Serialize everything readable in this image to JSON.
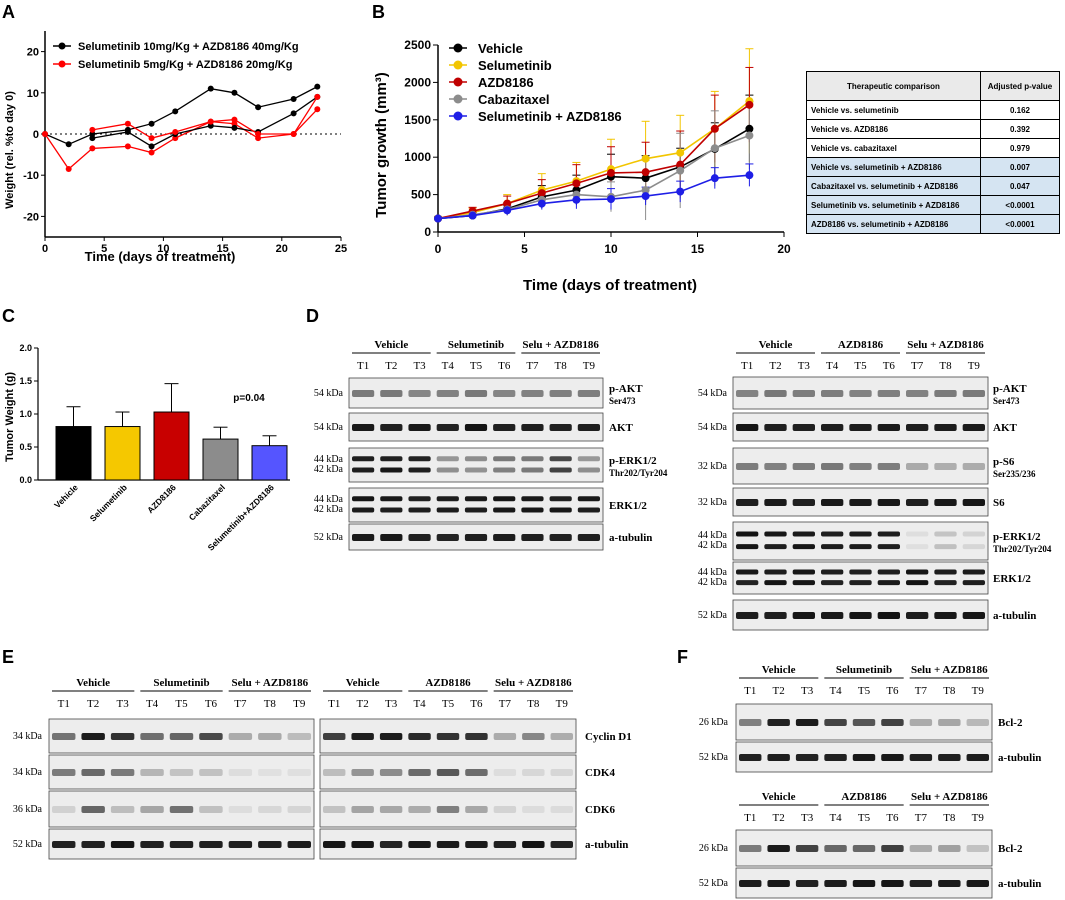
{
  "panels": {
    "A": "A",
    "B": "B",
    "C": "C",
    "D": "D",
    "E": "E",
    "F": "F"
  },
  "chart_data": [
    {
      "id": "A",
      "type": "line",
      "title": "",
      "xlabel": "Time (days of treatment)",
      "ylabel": "Weight (rel. %to day 0)",
      "xlim": [
        0,
        25
      ],
      "ylim": [
        -25,
        25
      ],
      "xticks": [
        "0",
        "5",
        "10",
        "15",
        "20",
        "25"
      ],
      "yticks": [
        "-20",
        "-10",
        "0",
        "10",
        "20"
      ],
      "series": [
        {
          "name": "Selumetinib 10mg/Kg + AZD8186 40mg/Kg",
          "color": "#000000",
          "x": [
            0,
            2,
            4,
            7,
            9,
            11,
            14,
            16,
            18,
            21,
            23
          ],
          "y": [
            0,
            -2.5,
            0,
            1,
            2.5,
            5.5,
            11,
            10,
            6.5,
            8.5,
            11.5
          ]
        },
        {
          "name": "Selumetinib 5mg/Kg + AZD8186 20mg/Kg",
          "color": "#ff0000",
          "x": [
            0,
            2,
            4,
            7,
            9,
            11,
            14,
            16,
            18,
            21,
            23
          ],
          "y": [
            0,
            -8.5,
            -3.5,
            -3,
            -4.5,
            -1,
            3,
            2.5,
            -1,
            0,
            6
          ]
        },
        {
          "name": "",
          "color": "#000000",
          "x": [
            4,
            7,
            9,
            11,
            14,
            16,
            18,
            21,
            23
          ],
          "y": [
            -1,
            0.5,
            -3,
            0,
            2,
            1.5,
            0.5,
            5,
            9
          ]
        },
        {
          "name": "",
          "color": "#ff0000",
          "x": [
            4,
            7,
            9,
            11,
            14,
            16,
            18,
            21,
            23
          ],
          "y": [
            1,
            2.5,
            -1,
            0.5,
            3,
            3.5,
            0,
            0,
            9
          ]
        }
      ]
    },
    {
      "id": "B",
      "type": "line",
      "title": "",
      "xlabel": "Time (days of treatment)",
      "ylabel": "Tumor growth (mm³)",
      "xlim": [
        0,
        20
      ],
      "ylim": [
        0,
        2500
      ],
      "xticks": [
        "0",
        "5",
        "10",
        "15",
        "20"
      ],
      "yticks": [
        "0",
        "500",
        "1000",
        "1500",
        "2000",
        "2500"
      ],
      "x": [
        0,
        2,
        4,
        6,
        8,
        10,
        12,
        14,
        16,
        18
      ],
      "series": [
        {
          "name": "Vehicle",
          "color": "#000000",
          "values": [
            180,
            220,
            310,
            470,
            560,
            740,
            720,
            870,
            1110,
            1380
          ],
          "err": [
            20,
            40,
            80,
            150,
            200,
            300,
            300,
            250,
            350,
            450
          ]
        },
        {
          "name": "Selumetinib",
          "color": "#f2c500",
          "values": [
            180,
            260,
            380,
            560,
            680,
            840,
            980,
            1060,
            1380,
            1750
          ],
          "err": [
            30,
            60,
            120,
            220,
            250,
            400,
            500,
            500,
            500,
            700
          ]
        },
        {
          "name": "AZD8186",
          "color": "#c00000",
          "values": [
            180,
            280,
            380,
            520,
            650,
            790,
            800,
            900,
            1380,
            1700
          ],
          "err": [
            20,
            50,
            100,
            180,
            250,
            350,
            400,
            450,
            450,
            500
          ]
        },
        {
          "name": "Cabazitaxel",
          "color": "#8c8c8c",
          "values": [
            180,
            230,
            300,
            430,
            500,
            470,
            560,
            820,
            1120,
            1290
          ],
          "err": [
            20,
            40,
            80,
            100,
            120,
            200,
            400,
            500,
            500,
            450
          ]
        },
        {
          "name": "Selumetinib + AZD8186",
          "color": "#1e1ee6",
          "values": [
            180,
            220,
            290,
            380,
            430,
            440,
            480,
            540,
            720,
            760
          ],
          "err": [
            20,
            40,
            60,
            80,
            120,
            140,
            120,
            140,
            140,
            150
          ]
        }
      ]
    },
    {
      "id": "C",
      "type": "bar",
      "title": "",
      "xlabel": "",
      "ylabel": "Tumor Weight (g)",
      "ylim": [
        0,
        2.0
      ],
      "yticks": [
        "0.0",
        "0.5",
        "1.0",
        "1.5",
        "2.0"
      ],
      "categories": [
        "Vehicle",
        "Selumetinib",
        "AZD8186",
        "Cabazitaxel",
        "Selumetinib+AZD8186"
      ],
      "values": [
        0.81,
        0.81,
        1.03,
        0.62,
        0.52
      ],
      "err": [
        0.3,
        0.22,
        0.43,
        0.18,
        0.15
      ],
      "colors": [
        "#000000",
        "#f5c800",
        "#c80000",
        "#8c8c8c",
        "#5555ff"
      ],
      "annotation": "p=0.04"
    }
  ],
  "table": {
    "headers": [
      "Therapeutic comparison",
      "Adjusted p-value"
    ],
    "rows": [
      {
        "comparison": "Vehicle vs. selumetinib",
        "p": "0.162",
        "hl": false
      },
      {
        "comparison": "Vehicle vs. AZD8186",
        "p": "0.392",
        "hl": false
      },
      {
        "comparison": "Vehicle vs. cabazitaxel",
        "p": "0.979",
        "hl": false
      },
      {
        "comparison": "Vehicle vs. selumetinib + AZD8186",
        "p": "0.007",
        "hl": true
      },
      {
        "comparison": "Cabazitaxel vs. selumetinib + AZD8186",
        "p": "0.047",
        "hl": true
      },
      {
        "comparison": "Selumetinib vs. selumetinib + AZD8186",
        "p": "<0.0001",
        "hl": true
      },
      {
        "comparison": "AZD8186 vs. selumetinib + AZD8186",
        "p": "<0.0001",
        "hl": true
      }
    ]
  },
  "blots": {
    "lanes": [
      "T1",
      "T2",
      "T3",
      "T4",
      "T5",
      "T6",
      "T7",
      "T8",
      "T9"
    ],
    "D_left": {
      "groups": [
        "Vehicle",
        "Selumetinib",
        "Selu + AZD8186"
      ],
      "rows": [
        {
          "kda": [
            "54 kDa"
          ],
          "label": "p-AKT",
          "sub": "Ser473"
        },
        {
          "kda": [
            "54 kDa"
          ],
          "label": "AKT",
          "sub": ""
        },
        {
          "kda": [
            "44 kDa",
            "42 kDa"
          ],
          "label": "p-ERK1/2",
          "sub": "Thr202/Tyr204"
        },
        {
          "kda": [
            "44 kDa",
            "42 kDa"
          ],
          "label": "ERK1/2",
          "sub": ""
        },
        {
          "kda": [
            "52 kDa"
          ],
          "label": "a-tubulin",
          "sub": ""
        }
      ]
    },
    "D_right": {
      "groups": [
        "Vehicle",
        "AZD8186",
        "Selu + AZD8186"
      ],
      "rows": [
        {
          "kda": [
            "54 kDa"
          ],
          "label": "p-AKT",
          "sub": "Ser473"
        },
        {
          "kda": [
            "54 kDa"
          ],
          "label": "AKT",
          "sub": ""
        },
        {
          "kda": [
            "32 kDa"
          ],
          "label": "p-S6",
          "sub": "Ser235/236"
        },
        {
          "kda": [
            "32 kDa"
          ],
          "label": "S6",
          "sub": ""
        },
        {
          "kda": [
            "44 kDa",
            "42 kDa"
          ],
          "label": "p-ERK1/2",
          "sub": "Thr202/Tyr204"
        },
        {
          "kda": [
            "44 kDa",
            "42 kDa"
          ],
          "label": "ERK1/2",
          "sub": ""
        },
        {
          "kda": [
            "52 kDa"
          ],
          "label": "a-tubulin",
          "sub": ""
        }
      ]
    },
    "E_left": {
      "groups": [
        "Vehicle",
        "Selumetinib",
        "Selu + AZD8186"
      ],
      "kda": [
        "34 kDa",
        "34 kDa",
        "36 kDa",
        "52 kDa"
      ]
    },
    "E_right": {
      "groups": [
        "Vehicle",
        "AZD8186",
        "Selu + AZD8186"
      ],
      "labels": [
        "Cyclin D1",
        "CDK4",
        "CDK6",
        "a-tubulin"
      ]
    },
    "F_top": {
      "groups": [
        "Vehicle",
        "Selumetinib",
        "Selu + AZD8186"
      ],
      "rows": [
        {
          "kda": [
            "26 kDa"
          ],
          "label": "Bcl-2"
        },
        {
          "kda": [
            "52 kDa"
          ],
          "label": "a-tubulin"
        }
      ]
    },
    "F_bottom": {
      "groups": [
        "Vehicle",
        "AZD8186",
        "Selu + AZD8186"
      ],
      "rows": [
        {
          "kda": [
            "26 kDa"
          ],
          "label": "Bcl-2"
        },
        {
          "kda": [
            "52 kDa"
          ],
          "label": "a-tubulin"
        }
      ]
    }
  }
}
